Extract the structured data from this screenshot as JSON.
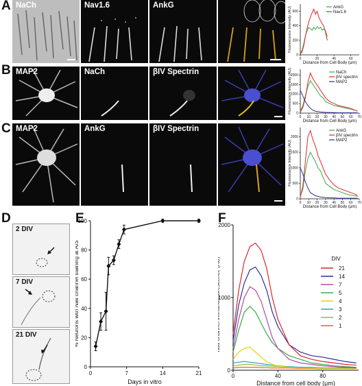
{
  "panels": {
    "A": {
      "letter": "A",
      "images": [
        "NaCh",
        "Nav1.6",
        "AnkG",
        ""
      ]
    },
    "B": {
      "letter": "B",
      "images": [
        "MAP2",
        "NaCh",
        "βIV Spectrin",
        ""
      ]
    },
    "C": {
      "letter": "C",
      "images": [
        "MAP2",
        "AnkG",
        "βIV Spectrin",
        ""
      ]
    },
    "D": {
      "letter": "D",
      "images": [
        "2 DIV",
        "7 DIV",
        "21 DIV"
      ]
    },
    "E": {
      "letter": "E"
    },
    "F": {
      "letter": "F"
    }
  },
  "colors": {
    "red": "#e3222a",
    "green": "#3aa845",
    "blue": "#2b2f9a",
    "black": "#111111"
  },
  "chart_data": [
    {
      "type": "line",
      "panel": "A",
      "xlabel": "Distance from Cell Body (μm)",
      "ylabel": "Fluorescence Intensity (AU)",
      "xticks": [
        0,
        20,
        40,
        60
      ],
      "yticks": [
        0,
        200,
        400,
        600
      ],
      "xlim": [
        0,
        70
      ],
      "ylim": [
        0,
        700
      ],
      "series": [
        {
          "name": "AnkG",
          "color": "#3aa845",
          "x": [
            0,
            2,
            4,
            6,
            8,
            10,
            12,
            14,
            16,
            18,
            20,
            22,
            24,
            26,
            28,
            30,
            32
          ],
          "y": [
            20,
            60,
            150,
            260,
            330,
            380,
            360,
            340,
            380,
            350,
            390,
            360,
            380,
            340,
            360,
            330,
            250
          ]
        },
        {
          "name": "Nav1.6",
          "color": "#e3222a",
          "x": [
            0,
            2,
            4,
            6,
            8,
            10,
            12,
            14,
            16,
            18,
            20,
            22,
            24,
            26,
            28,
            30,
            32
          ],
          "y": [
            10,
            40,
            120,
            250,
            360,
            450,
            520,
            580,
            630,
            560,
            600,
            520,
            470,
            430,
            390,
            310,
            200
          ]
        }
      ]
    },
    {
      "type": "line",
      "panel": "B",
      "xlabel": "Distance from Cell Body (μm)",
      "ylabel": "Fluorescence Intensity (AU)",
      "xticks": [
        0,
        10,
        20,
        30,
        40,
        50,
        60,
        70
      ],
      "yticks": [
        0,
        500,
        1000,
        1500,
        2000
      ],
      "xlim": [
        0,
        70
      ],
      "ylim": [
        0,
        2300
      ],
      "series": [
        {
          "name": "NaCh",
          "color": "#3aa845",
          "x": [
            0,
            3,
            6,
            9,
            12,
            15,
            18,
            21,
            24,
            27,
            30,
            35,
            40,
            45,
            50,
            55,
            60,
            65,
            68
          ],
          "y": [
            100,
            400,
            900,
            1400,
            1700,
            1500,
            1300,
            1100,
            900,
            800,
            600,
            500,
            400,
            350,
            300,
            250,
            200,
            150,
            100
          ]
        },
        {
          "name": "βIV spectrin",
          "color": "#e3222a",
          "x": [
            0,
            3,
            6,
            9,
            12,
            15,
            18,
            21,
            24,
            27,
            30,
            35,
            40,
            45,
            50,
            55,
            60,
            65,
            68
          ],
          "y": [
            50,
            300,
            800,
            1600,
            2100,
            1800,
            1600,
            1400,
            1200,
            1000,
            800,
            600,
            500,
            400,
            350,
            300,
            250,
            150,
            100
          ]
        },
        {
          "name": "MAP2",
          "color": "#2b2f9a",
          "x": [
            0,
            3,
            6,
            9,
            12,
            15,
            18,
            21,
            24,
            27,
            30,
            35,
            40,
            45,
            50,
            55,
            60,
            65,
            68
          ],
          "y": [
            1200,
            900,
            600,
            400,
            250,
            150,
            100,
            80,
            60,
            50,
            40,
            30,
            30,
            20,
            20,
            20,
            20,
            20,
            20
          ]
        }
      ]
    },
    {
      "type": "line",
      "panel": "C",
      "xlabel": "Distance from Cell Body (μm)",
      "ylabel": "Fluorescence Intensity (AU)",
      "xticks": [
        0,
        10,
        20,
        30,
        40,
        50,
        60,
        70
      ],
      "yticks": [
        0,
        500,
        1000,
        1500,
        2000
      ],
      "xlim": [
        0,
        70
      ],
      "ylim": [
        0,
        2300
      ],
      "series": [
        {
          "name": "AnkG",
          "color": "#3aa845",
          "x": [
            0,
            3,
            6,
            9,
            12,
            15,
            18,
            21,
            24,
            27,
            30,
            35,
            40,
            45,
            50,
            55,
            60,
            65,
            68
          ],
          "y": [
            100,
            300,
            900,
            1300,
            1500,
            1350,
            1200,
            1000,
            900,
            700,
            500,
            400,
            300,
            250,
            200,
            150,
            120,
            100,
            80
          ]
        },
        {
          "name": "βIV spectrin",
          "color": "#e3222a",
          "x": [
            0,
            3,
            6,
            9,
            12,
            15,
            18,
            21,
            24,
            27,
            30,
            35,
            40,
            45,
            50,
            55,
            60,
            65,
            68
          ],
          "y": [
            50,
            400,
            1200,
            2000,
            2200,
            1900,
            1700,
            1400,
            1200,
            1000,
            800,
            600,
            450,
            350,
            300,
            250,
            200,
            150,
            100
          ]
        },
        {
          "name": "MAP2",
          "color": "#2b2f9a",
          "x": [
            0,
            3,
            6,
            9,
            12,
            15,
            18,
            21,
            24,
            27,
            30,
            35,
            40,
            45,
            50,
            55,
            60,
            65,
            68
          ],
          "y": [
            1000,
            800,
            550,
            350,
            200,
            150,
            100,
            80,
            60,
            50,
            40,
            30,
            30,
            20,
            20,
            20,
            20,
            20,
            20
          ]
        }
      ]
    },
    {
      "type": "line",
      "panel": "E",
      "xlabel": "Days in vitro",
      "ylabel": "% Neurons with Nav channel staining at AIS",
      "xticks": [
        0,
        7,
        14,
        21
      ],
      "yticks": [
        0,
        20,
        40,
        60,
        80,
        100
      ],
      "xlim": [
        0,
        21
      ],
      "ylim": [
        0,
        100
      ],
      "series": [
        {
          "name": "",
          "color": "#111111",
          "x": [
            1,
            2,
            3,
            3.5,
            4.5,
            5.5,
            6.5,
            14,
            21
          ],
          "y": [
            14,
            31,
            38,
            69,
            73,
            84,
            94,
            100,
            100
          ],
          "err": [
            3,
            6,
            13,
            6,
            3,
            3,
            3,
            1,
            1
          ]
        }
      ]
    },
    {
      "type": "line",
      "panel": "F",
      "xlabel": "Distance from cell body (μm)",
      "ylabel": "Nav channel immunofluorescence (AU)",
      "xticks": [
        0,
        40,
        80
      ],
      "yticks": [
        0,
        1000,
        2000
      ],
      "xlim": [
        0,
        112
      ],
      "ylim": [
        0,
        2000
      ],
      "legend_title": "DIV",
      "series": [
        {
          "name": "21",
          "color": "#e3222a",
          "x": [
            0,
            5,
            10,
            15,
            20,
            25,
            30,
            35,
            40,
            50,
            60,
            70,
            80,
            90,
            100,
            110
          ],
          "y": [
            500,
            1100,
            1500,
            1700,
            1750,
            1650,
            1400,
            1000,
            700,
            350,
            200,
            150,
            120,
            100,
            80,
            70
          ]
        },
        {
          "name": "14",
          "color": "#2b2f9a",
          "x": [
            0,
            5,
            10,
            15,
            20,
            25,
            30,
            35,
            40,
            50,
            60,
            70,
            80,
            90,
            100,
            110
          ],
          "y": [
            400,
            900,
            1200,
            1380,
            1420,
            1300,
            1100,
            800,
            600,
            350,
            250,
            200,
            180,
            150,
            120,
            100
          ]
        },
        {
          "name": "7",
          "color": "#b04aa8",
          "x": [
            0,
            5,
            10,
            15,
            20,
            25,
            30,
            35,
            40,
            50,
            60,
            70,
            80,
            90,
            100,
            110
          ],
          "y": [
            300,
            700,
            1000,
            1150,
            1100,
            950,
            700,
            450,
            300,
            150,
            100,
            80,
            60,
            50,
            40,
            30
          ]
        },
        {
          "name": "5",
          "color": "#3aa845",
          "x": [
            0,
            5,
            10,
            15,
            20,
            25,
            30,
            35,
            40,
            50,
            60,
            70,
            80,
            90,
            100,
            110
          ],
          "y": [
            250,
            550,
            800,
            880,
            800,
            650,
            500,
            380,
            300,
            200,
            150,
            100,
            80,
            60,
            50,
            40
          ]
        },
        {
          "name": "4",
          "color": "#e6d20a",
          "x": [
            0,
            5,
            10,
            15,
            20,
            25,
            30,
            35,
            40,
            50,
            60,
            70,
            80,
            90,
            100,
            110
          ],
          "y": [
            150,
            250,
            300,
            320,
            250,
            180,
            120,
            80,
            60,
            40,
            30,
            30,
            20,
            20,
            20,
            20
          ]
        },
        {
          "name": "3",
          "color": "#2aa5b5",
          "x": [
            0,
            5,
            10,
            15,
            20,
            25,
            30,
            35,
            40,
            50,
            60,
            70,
            80,
            90,
            100,
            110
          ],
          "y": [
            100,
            110,
            120,
            110,
            100,
            90,
            80,
            70,
            60,
            50,
            40,
            40,
            30,
            30,
            30,
            30
          ]
        },
        {
          "name": "2",
          "color": "#8fbf3a",
          "x": [
            0,
            5,
            10,
            15,
            20,
            25,
            30,
            35,
            40,
            50,
            60,
            70,
            80,
            90,
            100,
            110
          ],
          "y": [
            60,
            70,
            80,
            80,
            70,
            60,
            60,
            50,
            50,
            40,
            40,
            30,
            30,
            30,
            30,
            30
          ]
        },
        {
          "name": "1",
          "color": "#e8601c",
          "x": [
            0,
            5,
            10,
            15,
            20,
            25,
            30,
            35,
            40,
            50,
            60,
            70,
            80,
            90,
            100,
            110
          ],
          "y": [
            30,
            40,
            40,
            40,
            40,
            35,
            35,
            30,
            30,
            30,
            25,
            25,
            20,
            20,
            20,
            20
          ]
        }
      ]
    }
  ]
}
